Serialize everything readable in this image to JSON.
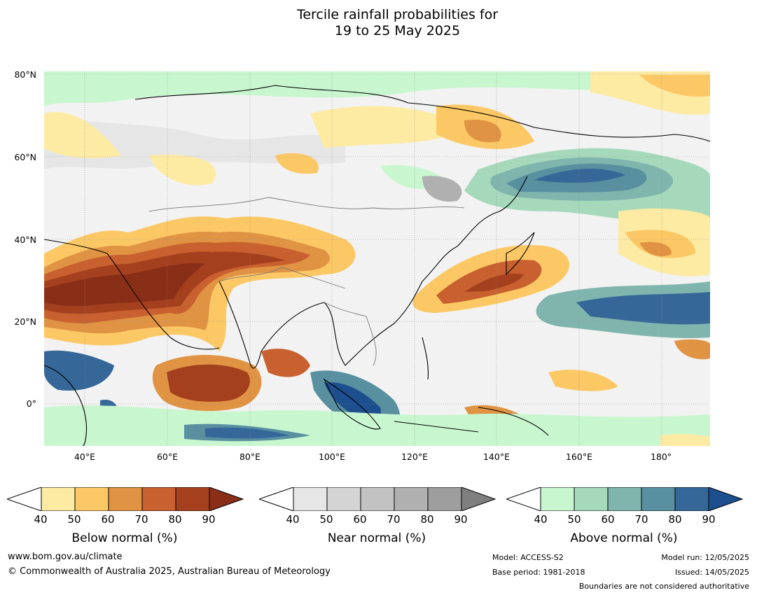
{
  "title": {
    "line1": "Tercile rainfall probabilities for",
    "line2": "19 to 25 May 2025"
  },
  "map": {
    "lat_labels": [
      "80°N",
      "60°N",
      "40°N",
      "20°N",
      "0°"
    ],
    "lon_labels": [
      "40°E",
      "60°E",
      "80°E",
      "100°E",
      "120°E",
      "140°E",
      "160°E",
      "180°"
    ]
  },
  "colorbars": [
    {
      "label": "Below normal (%)",
      "ticks": [
        "40",
        "50",
        "60",
        "70",
        "80",
        "90"
      ],
      "colors": [
        "#ffffff",
        "#fdeaa3",
        "#fcc865",
        "#e09343",
        "#c9602f",
        "#a5401f",
        "#8a2f17"
      ]
    },
    {
      "label": "Near normal (%)",
      "ticks": [
        "40",
        "50",
        "60",
        "70",
        "80",
        "90"
      ],
      "colors": [
        "#ffffff",
        "#e6e6e6",
        "#d4d4d4",
        "#c2c2c2",
        "#b0b0b0",
        "#9e9e9e",
        "#7f7f7f"
      ]
    },
    {
      "label": "Above normal (%)",
      "ticks": [
        "40",
        "50",
        "60",
        "70",
        "80",
        "90"
      ],
      "colors": [
        "#ffffff",
        "#c8f7cf",
        "#a6d9bc",
        "#7fb5ad",
        "#5890a0",
        "#356799",
        "#1d4f8f"
      ]
    }
  ],
  "footer": {
    "website": "www.bom.gov.au/climate",
    "copyright": "© Commonwealth of Australia 2025, Australian Bureau of Meteorology",
    "model": "Model: ACCESS-S2",
    "base_period": "Base period: 1981-2018",
    "model_run": "Model run: 12/05/2025",
    "issued": "Issued: 14/05/2025",
    "boundaries": "Boundaries are not considered authoritative"
  }
}
